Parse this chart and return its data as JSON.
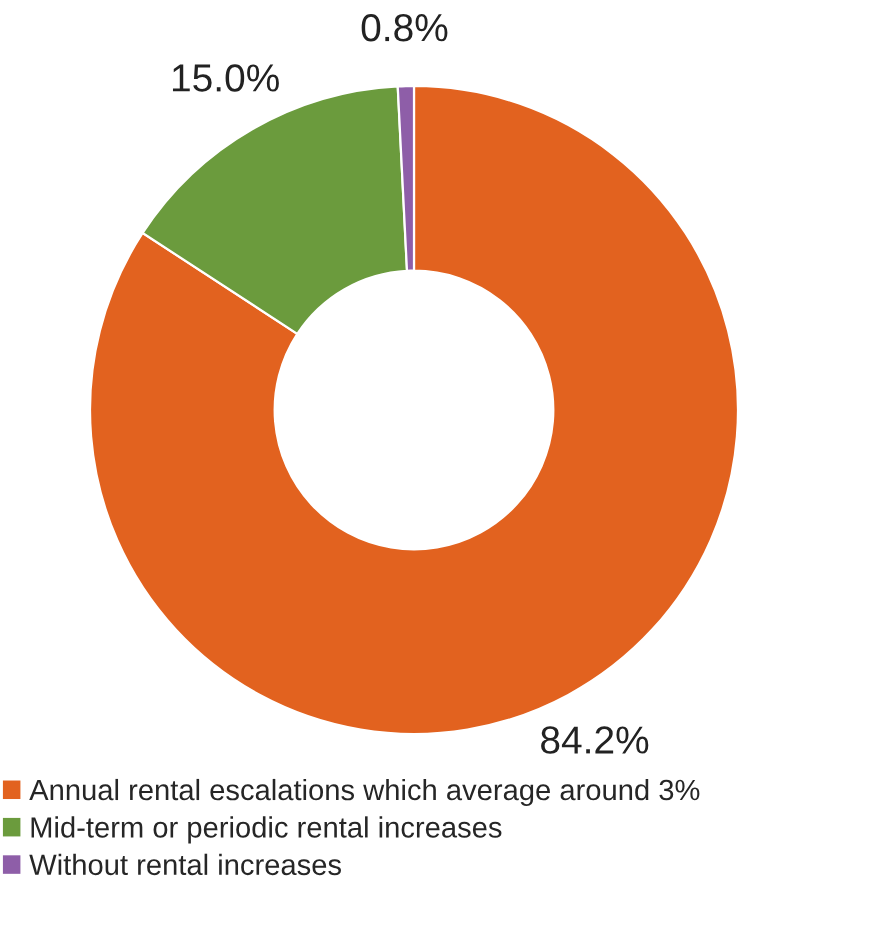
{
  "chart_data": {
    "type": "donut",
    "categories": [
      "Annual rental escalations which average around 3%",
      "Mid-term or periodic rental increases",
      "Without rental increases"
    ],
    "values": [
      84.2,
      15.0,
      0.8
    ],
    "value_labels": [
      "84.2%",
      "15.0%",
      "0.8%"
    ],
    "colors": [
      "#e2621f",
      "#6b9b3d",
      "#8e5ea8"
    ],
    "legend": "bottom"
  }
}
